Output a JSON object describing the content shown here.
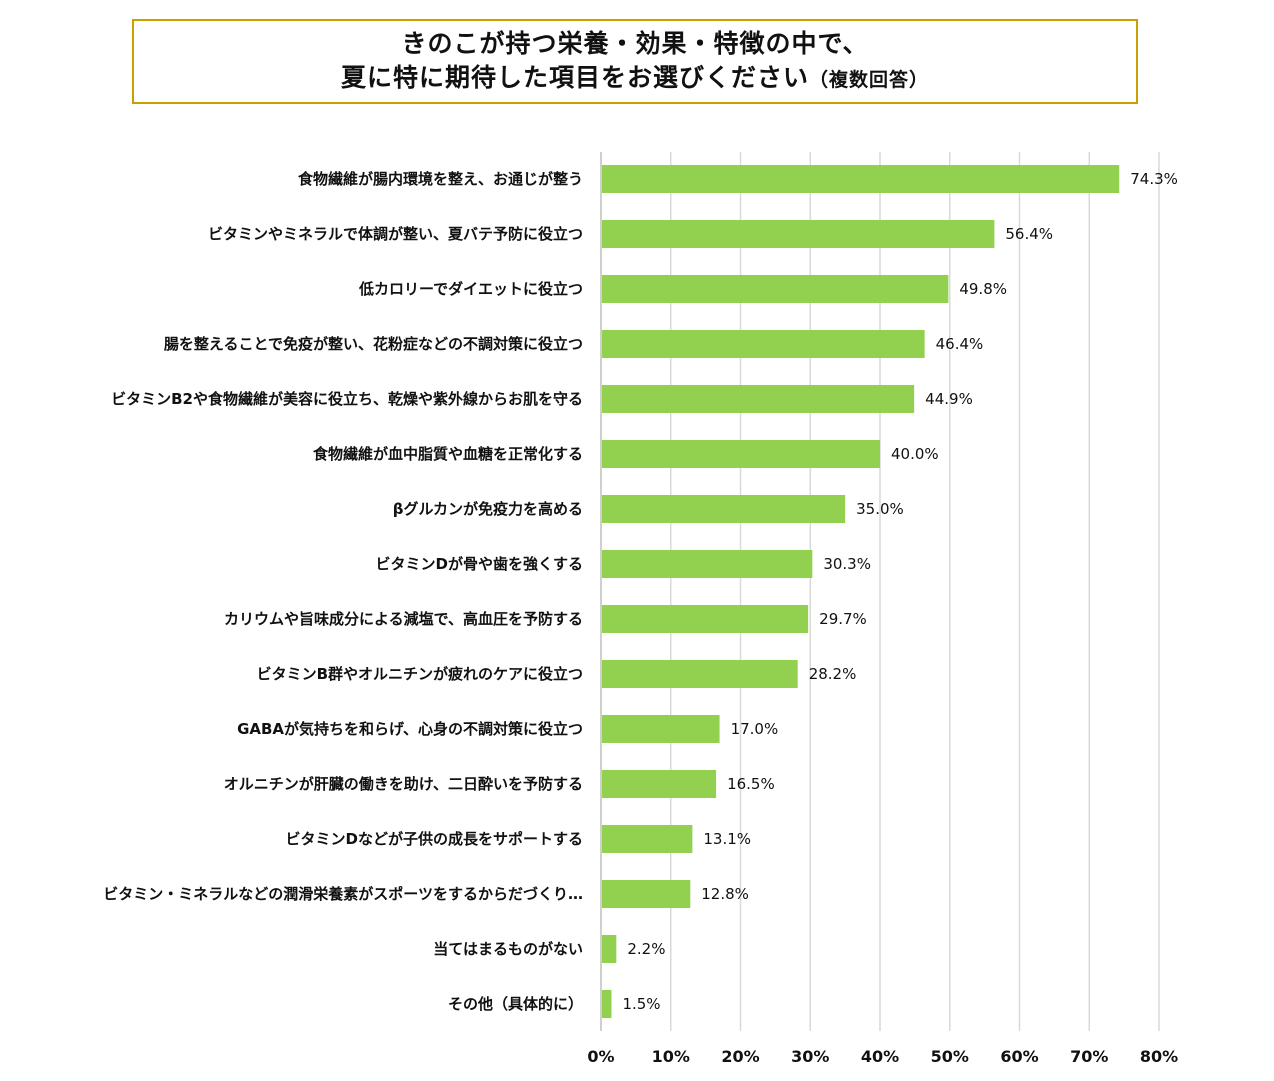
{
  "header": {
    "title_line1": "きのこが持つ栄養・効果・特徴の中で、",
    "title_line2": "夏に特に期待した項目をお選びください",
    "title_note": "（複数回答）"
  },
  "chart_data": {
    "type": "bar",
    "orientation": "horizontal",
    "categories": [
      "食物繊維が腸内環境を整え、お通じが整う",
      "ビタミンやミネラルで体調が整い、夏バテ予防に役立つ",
      "低カロリーでダイエットに役立つ",
      "腸を整えることで免疫が整い、花粉症などの不調対策に役立つ",
      "ビタミンB2や食物繊維が美容に役立ち、乾燥や紫外線からお肌を守る",
      "食物繊維が血中脂質や血糖を正常化する",
      "βグルカンが免疫力を高める",
      "ビタミンDが骨や歯を強くする",
      "カリウムや旨味成分による減塩で、高血圧を予防する",
      "ビタミンB群やオルニチンが疲れのケアに役立つ",
      "GABAが気持ちを和らげ、心身の不調対策に役立つ",
      "オルニチンが肝臓の働きを助け、二日酔いを予防する",
      "ビタミンDなどが子供の成長をサポートする",
      "ビタミン・ミネラルなどの潤滑栄養素がスポーツをするからだづくり…",
      "当てはまるものがない",
      "その他（具体的に）"
    ],
    "values": [
      74.3,
      56.4,
      49.8,
      46.4,
      44.9,
      40.0,
      35.0,
      30.3,
      29.7,
      28.2,
      17.0,
      16.5,
      13.1,
      12.8,
      2.2,
      1.5
    ],
    "value_labels": [
      "74.3%",
      "56.4%",
      "49.8%",
      "46.4%",
      "44.9%",
      "40.0%",
      "35.0%",
      "30.3%",
      "29.7%",
      "28.2%",
      "17.0%",
      "16.5%",
      "13.1%",
      "12.8%",
      "2.2%",
      "1.5%"
    ],
    "xlim": [
      0,
      80
    ],
    "x_ticks": [
      0,
      10,
      20,
      30,
      40,
      50,
      60,
      70,
      80
    ],
    "x_tick_labels": [
      "0%",
      "10%",
      "20%",
      "30%",
      "40%",
      "50%",
      "60%",
      "70%",
      "80%"
    ],
    "grid": true,
    "bar_color": "#92d050",
    "grid_color": "#d9d9d9",
    "title_border_color": "#c8a000"
  }
}
